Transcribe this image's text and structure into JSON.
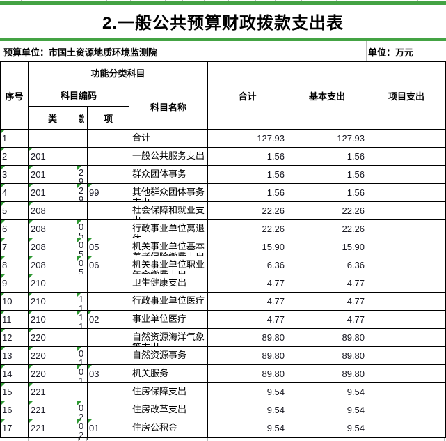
{
  "title": "2.一般公共预算财政拨款支出表",
  "meta": {
    "budget_unit": "预算单位：市国土资源地质环境监测院",
    "unit": "单位：万元"
  },
  "table": {
    "header": {
      "xuhao": "序号",
      "gongneng": "功能分类科目",
      "bianma": "科目编码",
      "mingcheng": "科目名称",
      "lei": "类",
      "kuan": "款",
      "xiang": "项",
      "heji": "合计",
      "jiben": "基本支出",
      "xiangmu": "项目支出"
    },
    "rows": [
      {
        "no": "1",
        "lei": "",
        "kuan": "",
        "xiang": "",
        "name": "合计",
        "total": "127.93",
        "basic": "127.93",
        "project": ""
      },
      {
        "no": "2",
        "lei": "201",
        "kuan": "",
        "xiang": "",
        "name": "一般公共服务支出",
        "total": "1.56",
        "basic": "1.56",
        "project": ""
      },
      {
        "no": "3",
        "lei": "201",
        "kuan": "29",
        "xiang": "",
        "name": "群众团体事务",
        "total": "1.56",
        "basic": "1.56",
        "project": ""
      },
      {
        "no": "4",
        "lei": "201",
        "kuan": "29",
        "xiang": "99",
        "name": "其他群众团体事务支出",
        "total": "1.56",
        "basic": "1.56",
        "project": ""
      },
      {
        "no": "5",
        "lei": "208",
        "kuan": "",
        "xiang": "",
        "name": "社会保障和就业支出",
        "total": "22.26",
        "basic": "22.26",
        "project": ""
      },
      {
        "no": "6",
        "lei": "208",
        "kuan": "05",
        "xiang": "",
        "name": "行政事业单位离退休",
        "total": "22.26",
        "basic": "22.26",
        "project": ""
      },
      {
        "no": "7",
        "lei": "208",
        "kuan": "05",
        "xiang": "05",
        "name": "机关事业单位基本养老保险缴费支出",
        "total": "15.90",
        "basic": "15.90",
        "project": ""
      },
      {
        "no": "8",
        "lei": "208",
        "kuan": "05",
        "xiang": "06",
        "name": "机关事业单位职业年金缴费支出",
        "total": "6.36",
        "basic": "6.36",
        "project": ""
      },
      {
        "no": "9",
        "lei": "210",
        "kuan": "",
        "xiang": "",
        "name": "卫生健康支出",
        "total": "4.77",
        "basic": "4.77",
        "project": ""
      },
      {
        "no": "10",
        "lei": "210",
        "kuan": "11",
        "xiang": "",
        "name": "行政事业单位医疗",
        "total": "4.77",
        "basic": "4.77",
        "project": ""
      },
      {
        "no": "11",
        "lei": "210",
        "kuan": "11",
        "xiang": "02",
        "name": "事业单位医疗",
        "total": "4.77",
        "basic": "4.77",
        "project": ""
      },
      {
        "no": "12",
        "lei": "220",
        "kuan": "",
        "xiang": "",
        "name": "自然资源海洋气象等支出",
        "total": "89.80",
        "basic": "89.80",
        "project": ""
      },
      {
        "no": "13",
        "lei": "220",
        "kuan": "01",
        "xiang": "",
        "name": "自然资源事务",
        "total": "89.80",
        "basic": "89.80",
        "project": ""
      },
      {
        "no": "14",
        "lei": "220",
        "kuan": "01",
        "xiang": "03",
        "name": "机关服务",
        "total": "89.80",
        "basic": "89.80",
        "project": ""
      },
      {
        "no": "15",
        "lei": "221",
        "kuan": "",
        "xiang": "",
        "name": "住房保障支出",
        "total": "9.54",
        "basic": "9.54",
        "project": ""
      },
      {
        "no": "16",
        "lei": "221",
        "kuan": "02",
        "xiang": "",
        "name": "住房改革支出",
        "total": "9.54",
        "basic": "9.54",
        "project": ""
      },
      {
        "no": "17",
        "lei": "221",
        "kuan": "02",
        "xiang": "01",
        "name": "住房公积金",
        "total": "9.54",
        "basic": "9.54",
        "project": ""
      }
    ]
  },
  "colors": {
    "bar_green": "#44a344",
    "triangle_green": "#2f9933"
  }
}
